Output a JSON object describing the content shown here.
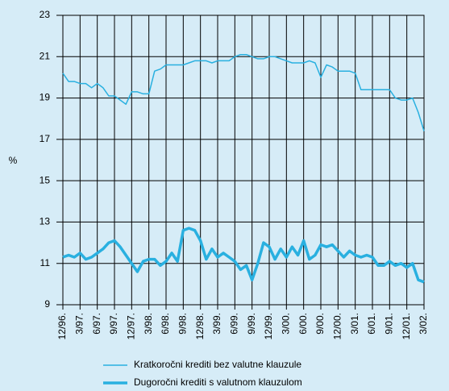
{
  "chart_data": {
    "type": "line",
    "y_label": "%",
    "categories": [
      "12/96.",
      null,
      null,
      "3/97.",
      null,
      null,
      "6/97.",
      null,
      null,
      "9/97.",
      null,
      null,
      "12/97.",
      null,
      null,
      "3/98.",
      null,
      null,
      "6/98.",
      null,
      null,
      "9/98.",
      null,
      null,
      "12/98.",
      null,
      null,
      "3/99.",
      null,
      null,
      "6/99.",
      null,
      null,
      "9/99.",
      null,
      null,
      "12/99.",
      null,
      null,
      "3/00.",
      null,
      null,
      "6/00.",
      null,
      null,
      "9/00.",
      null,
      null,
      "12/00.",
      null,
      null,
      "3/01.",
      null,
      null,
      "6/01.",
      null,
      null,
      "9/01.",
      null,
      null,
      "12/01.",
      null,
      null,
      "3/02."
    ],
    "series": [
      {
        "name": "Kratkoročni krediti bez valutne klauzule",
        "color": "#29b0e0",
        "width": 1.5,
        "values": [
          20.2,
          19.8,
          19.8,
          19.7,
          19.7,
          19.5,
          19.7,
          19.5,
          19.1,
          19.1,
          18.9,
          18.7,
          19.3,
          19.3,
          19.2,
          19.2,
          20.3,
          20.4,
          20.6,
          20.6,
          20.6,
          20.6,
          20.7,
          20.8,
          20.8,
          20.8,
          20.7,
          20.8,
          20.8,
          20.8,
          21.0,
          21.1,
          21.1,
          21.0,
          20.9,
          20.9,
          21.0,
          21.0,
          20.9,
          20.8,
          20.7,
          20.7,
          20.7,
          20.8,
          20.7,
          20.0,
          20.6,
          20.5,
          20.3,
          20.3,
          20.3,
          20.2,
          19.4,
          19.4,
          19.4,
          19.4,
          19.4,
          19.4,
          19.0,
          18.9,
          18.9,
          19.0,
          18.3,
          17.4
        ]
      },
      {
        "name": "Dugoročni krediti s valutnom klauzulom",
        "color": "#29b0e0",
        "width": 3.5,
        "values": [
          11.3,
          11.4,
          11.3,
          11.5,
          11.2,
          11.3,
          11.5,
          11.7,
          12.0,
          12.1,
          11.8,
          11.4,
          11.0,
          10.6,
          11.1,
          11.2,
          11.2,
          10.9,
          11.1,
          11.5,
          11.1,
          12.6,
          12.7,
          12.6,
          12.1,
          11.2,
          11.7,
          11.3,
          11.5,
          11.3,
          11.1,
          10.7,
          10.9,
          10.2,
          11.0,
          12.0,
          11.8,
          11.2,
          11.7,
          11.3,
          11.8,
          11.4,
          12.1,
          11.2,
          11.4,
          11.9,
          11.8,
          11.9,
          11.6,
          11.3,
          11.6,
          11.4,
          11.3,
          11.4,
          11.3,
          10.9,
          10.9,
          11.1,
          10.9,
          11.0,
          10.8,
          11.0,
          10.2,
          10.1
        ]
      }
    ],
    "ylim": [
      9,
      23
    ],
    "yticks": [
      9,
      11,
      13,
      15,
      17,
      19,
      21,
      23
    ],
    "grid": true
  }
}
